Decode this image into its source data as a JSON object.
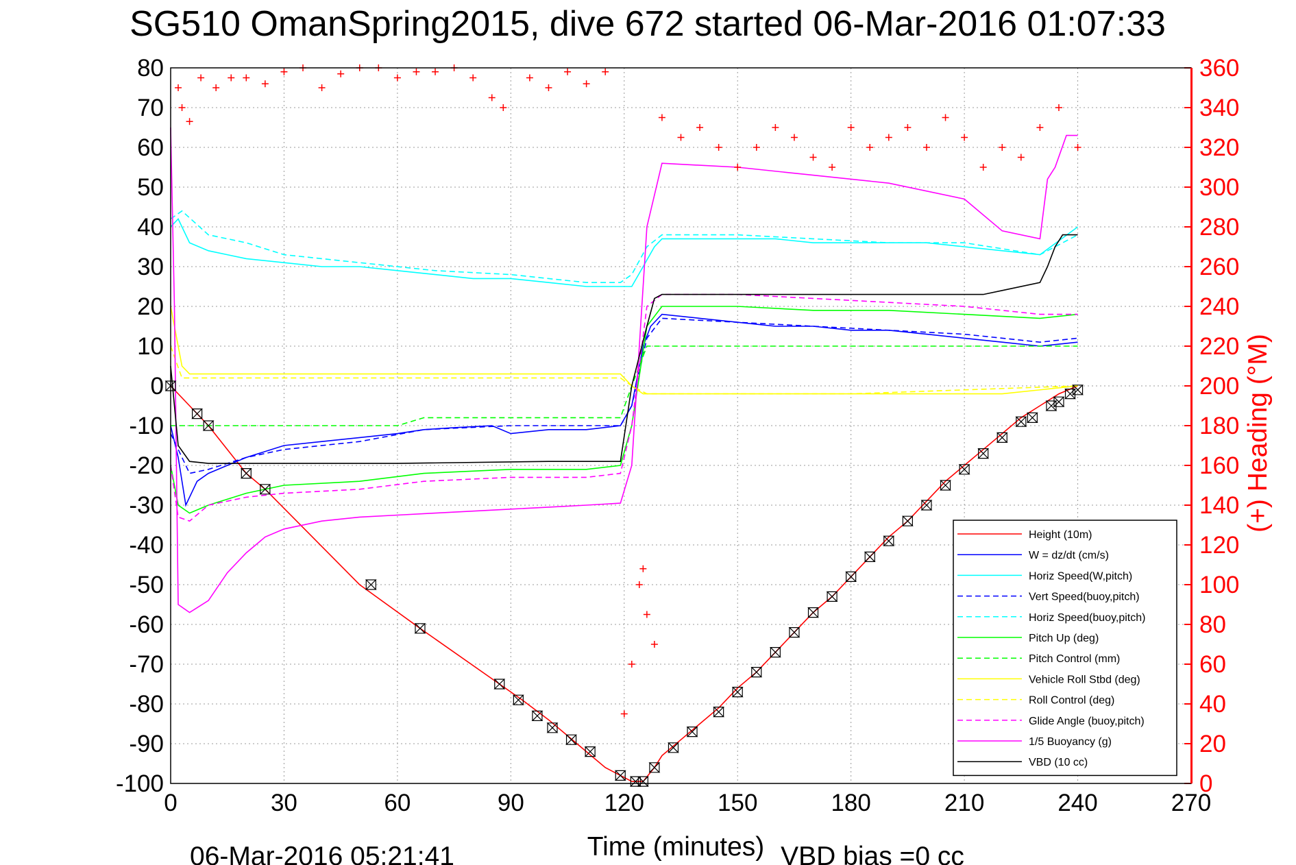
{
  "chart_data": {
    "type": "line",
    "title": "SG510 OmanSpring2015, dive 672 started 06-Mar-2016 01:07:33",
    "xlabel": "Time (minutes)",
    "ylabel_left": "",
    "ylabel_right": "(+) Heading (°M)",
    "xlim": [
      0,
      270
    ],
    "ylim_left": [
      -100,
      80
    ],
    "ylim_right": [
      0,
      360
    ],
    "x_ticks": [
      "0",
      "30",
      "60",
      "90",
      "120",
      "150",
      "180",
      "210",
      "240",
      "270"
    ],
    "y_ticks_left": [
      "80",
      "70",
      "60",
      "50",
      "40",
      "30",
      "20",
      "10",
      "0",
      "-10",
      "-20",
      "-30",
      "-40",
      "-50",
      "-60",
      "-70",
      "-80",
      "-90",
      "-100"
    ],
    "y_ticks_right": [
      "360",
      "340",
      "320",
      "300",
      "280",
      "260",
      "240",
      "220",
      "200",
      "180",
      "160",
      "140",
      "120",
      "100",
      "80",
      "60",
      "40",
      "20",
      "0"
    ],
    "grid": true,
    "legend_position": "bottom-right",
    "footer_left": "06-Mar-2016 05:21:41",
    "footer_right": "VBD bias =0 cc",
    "colors": {
      "height": "#ff0000",
      "w": "#0000ff",
      "hspd": "#00ffff",
      "pitch": "#00ff00",
      "roll": "#ffff00",
      "glide": "#ff00ff",
      "buoy": "#ff00ff",
      "vbd": "#000000",
      "heading": "#ff0000"
    },
    "series": [
      {
        "name": "Height (10m)",
        "color": "#ff0000",
        "dash": false,
        "x": [
          0,
          5,
          10,
          20,
          25,
          50,
          66,
          87,
          93,
          100,
          105,
          110,
          115,
          119,
          122,
          125,
          128,
          130,
          135,
          140,
          145,
          150,
          155,
          160,
          165,
          170,
          175,
          180,
          185,
          190,
          195,
          200,
          205,
          210,
          215,
          220,
          225,
          230,
          235,
          240
        ],
        "y": [
          0,
          -5,
          -10,
          -22,
          -26,
          -50,
          -61,
          -75,
          -79,
          -84,
          -88,
          -92,
          -96,
          -98,
          -99.5,
          -99.5,
          -96,
          -93,
          -89,
          -85,
          -81,
          -76,
          -72,
          -67,
          -62,
          -57,
          -53,
          -48,
          -43,
          -38,
          -34,
          -29,
          -24,
          -20,
          -16,
          -12,
          -8,
          -5,
          -2,
          0
        ]
      },
      {
        "name": "W = dz/dt (cm/s)",
        "color": "#0000ff",
        "dash": false,
        "x": [
          0,
          2,
          4,
          7,
          10,
          15,
          20,
          30,
          40,
          50,
          60,
          67,
          75,
          85,
          90,
          100,
          110,
          119,
          122,
          125,
          127,
          130,
          140,
          150,
          160,
          170,
          180,
          190,
          200,
          210,
          220,
          230,
          240
        ],
        "y": [
          -10,
          -18,
          -30,
          -24,
          -22,
          -20,
          -18,
          -15,
          -14,
          -13,
          -12,
          -11,
          -10.5,
          -10,
          -12,
          -11,
          -11,
          -10,
          -5,
          10,
          15,
          18,
          17,
          16,
          15,
          15,
          14,
          14,
          13,
          12,
          11,
          10,
          11
        ]
      },
      {
        "name": "Horiz Speed(W,pitch)",
        "color": "#00ffff",
        "dash": false,
        "x": [
          0,
          2,
          5,
          10,
          15,
          20,
          30,
          40,
          50,
          60,
          70,
          80,
          90,
          100,
          110,
          119,
          122,
          125,
          128,
          130,
          140,
          150,
          160,
          170,
          180,
          190,
          200,
          210,
          220,
          230,
          240
        ],
        "y": [
          40,
          42,
          36,
          34,
          33,
          32,
          31,
          30,
          30,
          29,
          28,
          27,
          27,
          26,
          25,
          25,
          25,
          30,
          35,
          37,
          37,
          37,
          37,
          36,
          36,
          36,
          36,
          35,
          34,
          33,
          40
        ]
      },
      {
        "name": "Vert Speed(buoy,pitch)",
        "color": "#0000ff",
        "dash": true,
        "x": [
          0,
          5,
          10,
          20,
          30,
          50,
          67,
          90,
          110,
          119,
          122,
          126,
          130,
          150,
          170,
          190,
          210,
          230,
          240
        ],
        "y": [
          -12,
          -22,
          -21,
          -18,
          -16,
          -14,
          -11,
          -10,
          -10,
          -10,
          -5,
          12,
          17,
          16,
          15,
          14,
          13,
          11,
          12
        ]
      },
      {
        "name": "Horiz Speed(buoy,pitch)",
        "color": "#00ffff",
        "dash": true,
        "x": [
          0,
          3,
          10,
          20,
          30,
          50,
          70,
          90,
          110,
          119,
          122,
          126,
          130,
          150,
          170,
          190,
          210,
          230,
          240
        ],
        "y": [
          42,
          44,
          38,
          36,
          33,
          31,
          29,
          28,
          26,
          26,
          28,
          35,
          38,
          38,
          37,
          36,
          36,
          33,
          38
        ]
      },
      {
        "name": "Pitch Up (deg)",
        "color": "#00ff00",
        "dash": false,
        "x": [
          0,
          2,
          5,
          10,
          20,
          30,
          50,
          67,
          90,
          110,
          119,
          122,
          126,
          130,
          150,
          170,
          190,
          210,
          230,
          240
        ],
        "y": [
          -20,
          -30,
          -32,
          -30,
          -27,
          -25,
          -24,
          -22,
          -21,
          -21,
          -20,
          -10,
          15,
          20,
          20,
          19,
          19,
          18,
          17,
          18
        ]
      },
      {
        "name": "Pitch Control (mm)",
        "color": "#00ff00",
        "dash": true,
        "x": [
          0,
          2,
          4,
          10,
          30,
          60,
          67,
          90,
          119,
          122,
          126,
          128,
          150,
          180,
          210,
          230,
          240
        ],
        "y": [
          -10,
          -10,
          -10,
          -10,
          -10,
          -10,
          -8,
          -8,
          -8,
          0,
          10,
          10,
          10,
          10,
          10,
          10,
          10
        ]
      },
      {
        "name": "Vehicle Roll Stbd (deg)",
        "color": "#ffff00",
        "dash": false,
        "x": [
          0,
          3,
          5,
          10,
          30,
          60,
          90,
          110,
          119,
          122,
          125,
          127,
          130,
          160,
          190,
          220,
          240
        ],
        "y": [
          20,
          5,
          3,
          3,
          3,
          3,
          3,
          3,
          3,
          0,
          -2,
          -2,
          -2,
          -2,
          -2,
          -2,
          0
        ]
      },
      {
        "name": "Roll Control (deg)",
        "color": "#ffff00",
        "dash": true,
        "x": [
          0,
          3,
          10,
          60,
          119,
          122,
          126,
          130,
          180,
          240
        ],
        "y": [
          10,
          2,
          2,
          2,
          2,
          0,
          -2,
          -2,
          -2,
          0
        ]
      },
      {
        "name": "Glide Angle (buoy,pitch)",
        "color": "#ff00ff",
        "dash": true,
        "x": [
          0,
          2,
          5,
          10,
          20,
          30,
          50,
          67,
          90,
          110,
          119,
          122,
          126,
          130,
          150,
          170,
          190,
          210,
          230,
          240
        ],
        "y": [
          -20,
          -33,
          -34,
          -30,
          -28,
          -27,
          -26,
          -24,
          -23,
          -23,
          -22,
          -10,
          20,
          23,
          23,
          22,
          21,
          20,
          18,
          18
        ]
      },
      {
        "name": "1/5 Buoyancy (g)",
        "color": "#ff00ff",
        "dash": false,
        "x": [
          0,
          1,
          2,
          5,
          10,
          15,
          20,
          25,
          30,
          40,
          50,
          60,
          70,
          80,
          90,
          100,
          110,
          119,
          122,
          126,
          130,
          150,
          170,
          190,
          210,
          220,
          230,
          232,
          234,
          237,
          240
        ],
        "y": [
          65,
          20,
          -55,
          -57,
          -54,
          -47,
          -42,
          -38,
          -36,
          -34,
          -33,
          -32.5,
          -32,
          -31.5,
          -31,
          -30.5,
          -30,
          -29.5,
          -20,
          40,
          56,
          55,
          53,
          51,
          47,
          39,
          37,
          52,
          55,
          63,
          63
        ]
      },
      {
        "name": "VBD (10 cc)",
        "color": "#000000",
        "dash": false,
        "x": [
          0,
          1,
          2,
          5,
          10,
          20,
          60,
          100,
          119,
          122,
          126,
          128,
          130,
          160,
          200,
          215,
          220,
          230,
          232,
          234,
          236,
          240
        ],
        "y": [
          5,
          -5,
          -15,
          -19,
          -19.5,
          -19.5,
          -19.5,
          -19,
          -19,
          0,
          15,
          22,
          23,
          23,
          23,
          23,
          24,
          26,
          30,
          35,
          38,
          38
        ]
      }
    ],
    "heading_marker": {
      "symbol": "+",
      "color": "#ff0000",
      "axis": "right",
      "x": [
        2,
        3,
        5,
        8,
        12,
        16,
        20,
        25,
        30,
        35,
        40,
        45,
        50,
        55,
        60,
        65,
        70,
        75,
        80,
        85,
        88,
        95,
        100,
        105,
        110,
        115,
        120,
        122,
        124,
        125,
        126,
        128,
        130,
        135,
        140,
        145,
        150,
        155,
        160,
        165,
        170,
        175,
        180,
        185,
        190,
        195,
        200,
        205,
        210,
        215,
        220,
        225,
        230,
        235,
        240
      ],
      "y": [
        350,
        340,
        333,
        355,
        350,
        355,
        355,
        352,
        358,
        360,
        350,
        357,
        360,
        360,
        355,
        358,
        358,
        360,
        355,
        345,
        340,
        355,
        350,
        358,
        352,
        358,
        35,
        60,
        100,
        108,
        85,
        70,
        335,
        325,
        330,
        320,
        310,
        320,
        330,
        325,
        315,
        310,
        330,
        320,
        325,
        330,
        320,
        335,
        325,
        310,
        320,
        315,
        330,
        340,
        320
      ]
    },
    "markers": {
      "symbol": "hourglass",
      "color": "#000000",
      "x": [
        0,
        7,
        10,
        20,
        25,
        53,
        66,
        87,
        92,
        97,
        101,
        106,
        111,
        119,
        123,
        125,
        128,
        133,
        138,
        145,
        150,
        155,
        160,
        165,
        170,
        175,
        180,
        185,
        190,
        195,
        200,
        205,
        210,
        215,
        220,
        225,
        228,
        233,
        235,
        238,
        240
      ],
      "y": [
        0,
        -7,
        -10,
        -22,
        -26,
        -50,
        -61,
        -75,
        -79,
        -83,
        -86,
        -89,
        -92,
        -98,
        -99.5,
        -99.5,
        -96,
        -91,
        -87,
        -82,
        -77,
        -72,
        -67,
        -62,
        -57,
        -53,
        -48,
        -43,
        -39,
        -34,
        -30,
        -25,
        -21,
        -17,
        -13,
        -9,
        -8,
        -5,
        -4,
        -2,
        -1
      ]
    }
  }
}
